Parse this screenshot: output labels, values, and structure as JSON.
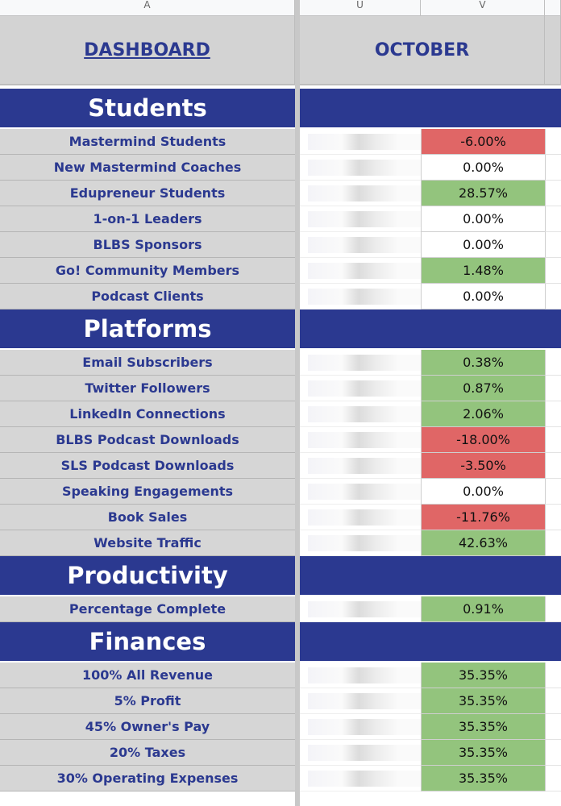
{
  "column_headers": [
    "A",
    "U",
    "V"
  ],
  "header": {
    "title": "DASHBOARD",
    "month": "OCTOBER"
  },
  "sections": [
    {
      "title": "Students",
      "rows": [
        {
          "label": "Mastermind Students",
          "value": "-6.00%",
          "color": "#e06666"
        },
        {
          "label": "New Mastermind Coaches",
          "value": "0.00%",
          "color": "#ffffff"
        },
        {
          "label": "Edupreneur Students",
          "value": "28.57%",
          "color": "#93c47d"
        },
        {
          "label": "1-on-1 Leaders",
          "value": "0.00%",
          "color": "#ffffff"
        },
        {
          "label": "BLBS Sponsors",
          "value": "0.00%",
          "color": "#ffffff"
        },
        {
          "label": "Go! Community Members",
          "value": "1.48%",
          "color": "#93c47d"
        },
        {
          "label": "Podcast Clients",
          "value": "0.00%",
          "color": "#ffffff"
        }
      ]
    },
    {
      "title": "Platforms",
      "rows": [
        {
          "label": "Email Subscribers",
          "value": "0.38%",
          "color": "#93c47d"
        },
        {
          "label": "Twitter Followers",
          "value": "0.87%",
          "color": "#93c47d"
        },
        {
          "label": "LinkedIn Connections",
          "value": "2.06%",
          "color": "#93c47d"
        },
        {
          "label": "BLBS Podcast Downloads",
          "value": "-18.00%",
          "color": "#e06666"
        },
        {
          "label": "SLS Podcast Downloads",
          "value": "-3.50%",
          "color": "#e06666"
        },
        {
          "label": "Speaking Engagements",
          "value": "0.00%",
          "color": "#ffffff"
        },
        {
          "label": "Book Sales",
          "value": "-11.76%",
          "color": "#e06666"
        },
        {
          "label": "Website Traffic",
          "value": "42.63%",
          "color": "#93c47d"
        }
      ]
    },
    {
      "title": "Productivity",
      "rows": [
        {
          "label": "Percentage Complete",
          "value": "0.91%",
          "color": "#93c47d"
        }
      ]
    },
    {
      "title": "Finances",
      "rows": [
        {
          "label": "100% All Revenue",
          "value": "35.35%",
          "color": "#93c47d"
        },
        {
          "label": "5% Profit",
          "value": "35.35%",
          "color": "#93c47d"
        },
        {
          "label": "45% Owner's Pay",
          "value": "35.35%",
          "color": "#93c47d"
        },
        {
          "label": "20% Taxes",
          "value": "35.35%",
          "color": "#93c47d"
        },
        {
          "label": "30% Operating Expenses",
          "value": "35.35%",
          "color": "#93c47d"
        }
      ]
    }
  ]
}
